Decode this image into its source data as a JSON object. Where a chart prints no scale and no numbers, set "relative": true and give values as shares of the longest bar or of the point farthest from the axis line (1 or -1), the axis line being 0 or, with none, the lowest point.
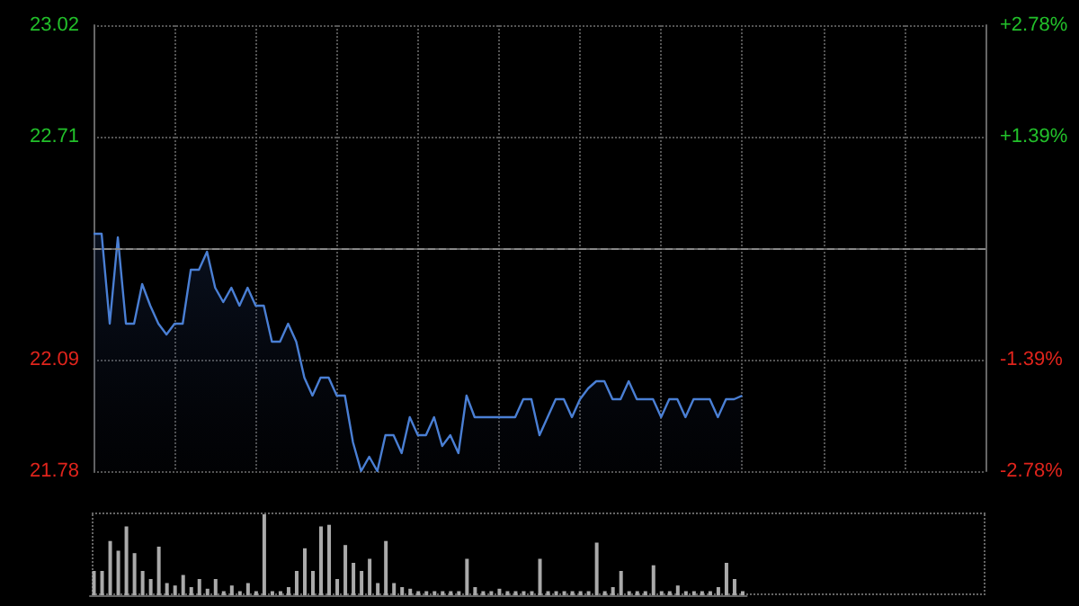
{
  "chart_data": [
    {
      "type": "area",
      "categories": [
        null,
        null,
        null,
        null,
        null,
        null,
        null,
        null,
        null,
        null,
        null,
        null,
        null,
        null,
        null,
        null,
        null,
        null,
        null,
        null,
        null,
        null,
        null,
        null,
        null,
        null,
        null,
        null,
        null,
        null,
        null,
        null,
        null,
        null,
        null,
        null,
        null,
        null,
        null,
        null,
        null,
        null,
        null,
        null,
        null,
        null,
        null,
        null,
        null,
        null,
        null,
        null,
        null,
        null,
        null,
        null,
        null,
        null,
        null,
        null,
        null,
        null,
        null,
        null,
        null,
        null,
        null,
        null,
        null,
        null,
        null,
        null,
        null,
        null,
        null,
        null,
        null,
        null,
        null,
        null,
        null
      ],
      "series": [
        {
          "color": "#4a7fd4",
          "values": [
            22.44,
            22.44,
            22.19,
            22.43,
            22.19,
            22.19,
            22.3,
            22.24,
            22.19,
            22.16,
            22.19,
            22.19,
            22.34,
            22.34,
            22.39,
            22.29,
            22.25,
            22.29,
            22.24,
            22.29,
            22.24,
            22.24,
            22.14,
            22.14,
            22.19,
            22.14,
            22.04,
            21.99,
            22.04,
            22.04,
            21.99,
            21.99,
            21.86,
            21.78,
            21.82,
            21.78,
            21.88,
            21.88,
            21.83,
            21.93,
            21.88,
            21.88,
            21.93,
            21.85,
            21.88,
            21.83,
            21.99,
            21.93,
            21.93,
            21.93,
            21.93,
            21.93,
            21.93,
            21.98,
            21.98,
            21.88,
            21.93,
            21.98,
            21.98,
            21.93,
            21.98,
            22.01,
            22.03,
            22.03,
            21.98,
            21.98,
            22.03,
            21.98,
            21.98,
            21.98,
            21.93,
            21.98,
            21.98,
            21.93,
            21.98,
            21.98,
            21.98,
            21.93,
            21.98,
            21.98,
            21.99
          ]
        }
      ],
      "ylim": [
        21.78,
        23.02
      ],
      "yticks": [
        21.78,
        22.09,
        22.71,
        23.02
      ],
      "y2lim": [
        -2.78,
        2.78
      ],
      "y2ticks": [
        {
          "value": -2.78,
          "label": "-2.78%"
        },
        {
          "value": -1.39,
          "label": "-1.39%"
        },
        {
          "value": 1.39,
          "label": "+1.39%"
        },
        {
          "value": 2.78,
          "label": "+2.78%"
        }
      ],
      "ref_lines": [
        {
          "axis": "y",
          "value": 22.4,
          "line_style": "dashed",
          "color": "#888888"
        }
      ],
      "grid": true,
      "tick_labels": "y"
    },
    {
      "type": "bar",
      "relative": true,
      "categories": [
        null,
        null,
        null,
        null,
        null,
        null,
        null,
        null,
        null,
        null,
        null,
        null,
        null,
        null,
        null,
        null,
        null,
        null,
        null,
        null,
        null,
        null,
        null,
        null,
        null,
        null,
        null,
        null,
        null,
        null,
        null,
        null,
        null,
        null,
        null,
        null,
        null,
        null,
        null,
        null,
        null,
        null,
        null,
        null,
        null,
        null,
        null,
        null,
        null,
        null,
        null,
        null,
        null,
        null,
        null,
        null,
        null,
        null,
        null,
        null,
        null,
        null,
        null,
        null,
        null,
        null,
        null,
        null,
        null,
        null,
        null,
        null,
        null,
        null,
        null,
        null,
        null,
        null,
        null,
        null,
        null
      ],
      "series": [
        {
          "color": "#aaaaaa",
          "values": [
            0.3,
            0.3,
            0.67,
            0.55,
            0.85,
            0.52,
            0.3,
            0.2,
            0.6,
            0.15,
            0.12,
            0.25,
            0.1,
            0.2,
            0.08,
            0.2,
            0.05,
            0.12,
            0.05,
            0.15,
            0.05,
            1,
            0.05,
            0.05,
            0.1,
            0.3,
            0.58,
            0.3,
            0.85,
            0.87,
            0.2,
            0.62,
            0.4,
            0.3,
            0.45,
            0.15,
            0.67,
            0.15,
            0.1,
            0.08,
            0.05,
            0.05,
            0.05,
            0.05,
            0.05,
            0.05,
            0.45,
            0.1,
            0.05,
            0.05,
            0.08,
            0.05,
            0.05,
            0.05,
            0.05,
            0.45,
            0.05,
            0.05,
            0.05,
            0.05,
            0.05,
            0.05,
            0.65,
            0.05,
            0.1,
            0.3,
            0.05,
            0.05,
            0.05,
            0.37,
            0.05,
            0.05,
            0.12,
            0.05,
            0.05,
            0.05,
            0.05,
            0.1,
            0.4,
            0.2,
            0.05
          ]
        }
      ],
      "tick_labels": false
    }
  ]
}
